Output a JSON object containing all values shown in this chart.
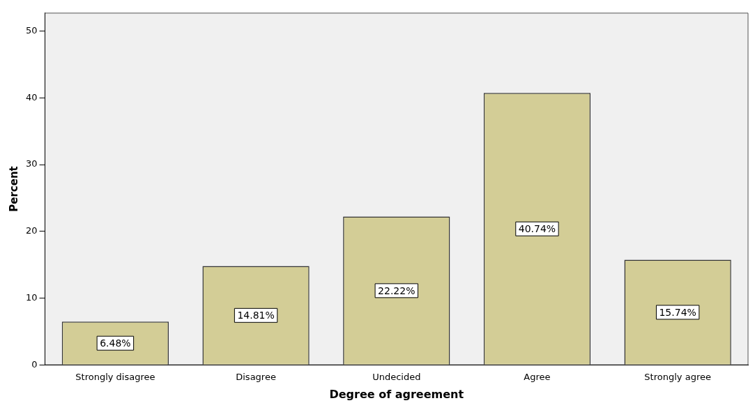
{
  "chart_data": {
    "type": "bar",
    "xlabel": "Degree of agreement",
    "ylabel": "Percent",
    "categories": [
      "Strongly disagree",
      "Disagree",
      "Undecided",
      "Agree",
      "Strongly agree"
    ],
    "values": [
      6.48,
      14.81,
      22.22,
      40.74,
      15.74
    ],
    "value_labels": [
      "6.48%",
      "14.81%",
      "22.22%",
      "40.74%",
      "15.74%"
    ],
    "color": "#d3cd96",
    "ylim": [
      0,
      52.7
    ],
    "yticks": [
      0,
      10,
      20,
      30,
      40,
      50
    ],
    "grid": false,
    "legend": false
  }
}
